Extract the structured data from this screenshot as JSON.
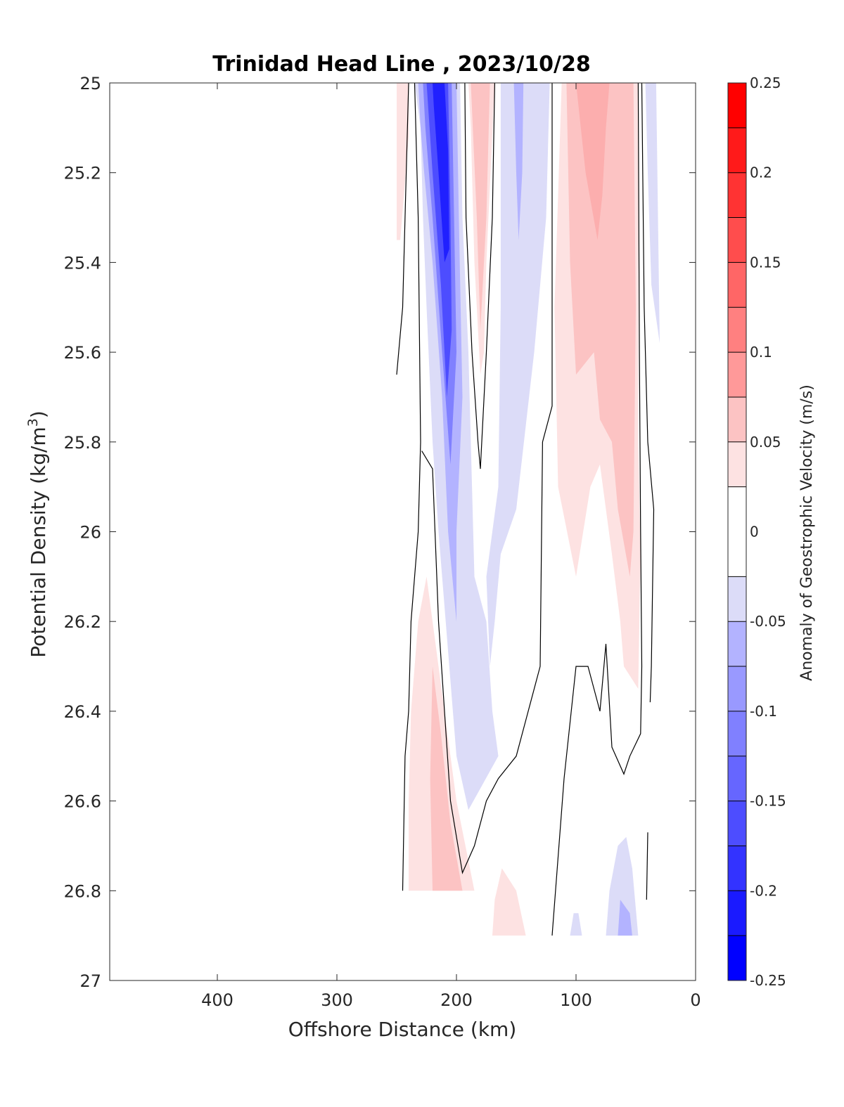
{
  "chart_data": {
    "type": "heatmap",
    "subtype": "filled-contour",
    "title": "Trinidad Head Line , 2023/10/28",
    "xlabel": "Offshore Distance (km)",
    "ylabel": "Potential Density (kg/m",
    "ylabel_sup": "3",
    "ylabel_close": ")",
    "xlim": [
      490,
      0
    ],
    "x_reversed": true,
    "ylim": [
      25,
      27
    ],
    "y_reversed": true,
    "xticks": [
      400,
      300,
      200,
      100,
      0
    ],
    "yticks": [
      25,
      25.2,
      25.4,
      25.6,
      25.8,
      26,
      26.2,
      26.4,
      26.6,
      26.8,
      27
    ],
    "ytick_labels": [
      "25",
      "25.2",
      "25.4",
      "25.6",
      "25.8",
      "26",
      "26.2",
      "26.4",
      "26.6",
      "26.8",
      "27"
    ],
    "colorbar": {
      "label": "Anomaly of Geostrophic Velocity (m/s)",
      "range": [
        -0.25,
        0.25
      ],
      "ticks": [
        0.25,
        0.2,
        0.15,
        0.1,
        0.05,
        0,
        -0.05,
        -0.1,
        -0.15,
        -0.2,
        -0.25
      ],
      "tick_labels": [
        "0.25",
        "0.2",
        "0.15",
        "0.1",
        "0.05",
        "0",
        "-0.05",
        "-0.1",
        "-0.15",
        "-0.2",
        "-0.25"
      ],
      "levels": [
        -0.25,
        -0.225,
        -0.2,
        -0.175,
        -0.15,
        -0.125,
        -0.1,
        -0.075,
        -0.05,
        -0.025,
        0.025,
        0.05,
        0.075,
        0.1,
        0.125,
        0.15,
        0.175,
        0.2,
        0.225,
        0.25
      ],
      "bands": [
        {
          "min": -0.25,
          "max": -0.225,
          "color": "#0000ff"
        },
        {
          "min": -0.225,
          "max": -0.2,
          "color": "#1a1aff"
        },
        {
          "min": -0.2,
          "max": -0.175,
          "color": "#3333ff"
        },
        {
          "min": -0.175,
          "max": -0.15,
          "color": "#4d4dff"
        },
        {
          "min": -0.15,
          "max": -0.125,
          "color": "#6666ff"
        },
        {
          "min": -0.125,
          "max": -0.1,
          "color": "#8080ff"
        },
        {
          "min": -0.1,
          "max": -0.075,
          "color": "#9999ff"
        },
        {
          "min": -0.075,
          "max": -0.05,
          "color": "#b3b3ff"
        },
        {
          "min": -0.05,
          "max": -0.025,
          "color": "#dcdcf8"
        },
        {
          "min": -0.025,
          "max": 0.025,
          "color": "#ffffff"
        },
        {
          "min": 0.025,
          "max": 0.05,
          "color": "#fde2e2"
        },
        {
          "min": 0.05,
          "max": 0.075,
          "color": "#fcc3c3"
        },
        {
          "min": 0.075,
          "max": 0.1,
          "color": "#ff9999"
        },
        {
          "min": 0.1,
          "max": 0.125,
          "color": "#ff8080"
        },
        {
          "min": 0.125,
          "max": 0.15,
          "color": "#ff6666"
        },
        {
          "min": 0.15,
          "max": 0.175,
          "color": "#ff4d4d"
        },
        {
          "min": 0.175,
          "max": 0.2,
          "color": "#ff3333"
        },
        {
          "min": 0.2,
          "max": 0.225,
          "color": "#ff1a1a"
        },
        {
          "min": 0.225,
          "max": 0.25,
          "color": "#ff0000"
        }
      ]
    },
    "regions": [
      {
        "name": "red-strip-far-offshore",
        "level": 0.04,
        "color": "#fde2e2",
        "points": [
          [
            250,
            25
          ],
          [
            240,
            25
          ],
          [
            240,
            25.12
          ],
          [
            247,
            25.35
          ],
          [
            250,
            25.35
          ]
        ]
      },
      {
        "name": "blue-core-light",
        "level": -0.04,
        "color": "#dcdcf8",
        "points": [
          [
            235,
            25
          ],
          [
            197,
            25
          ],
          [
            195,
            25.3
          ],
          [
            190,
            25.6
          ],
          [
            185,
            26.1
          ],
          [
            175,
            26.2
          ],
          [
            170,
            26.4
          ],
          [
            165,
            26.5
          ],
          [
            190,
            26.62
          ],
          [
            200,
            26.5
          ],
          [
            215,
            26.0
          ],
          [
            220,
            25.8
          ],
          [
            225,
            25.5
          ],
          [
            228,
            25.3
          ],
          [
            230,
            25.1
          ]
        ]
      },
      {
        "name": "blue-core-mid",
        "level": -0.08,
        "color": "#b3b3ff",
        "points": [
          [
            232,
            25
          ],
          [
            200,
            25
          ],
          [
            198,
            25.3
          ],
          [
            195,
            25.7
          ],
          [
            200,
            26.0
          ],
          [
            200,
            26.2
          ],
          [
            207,
            26.0
          ],
          [
            212,
            25.7
          ],
          [
            220,
            25.4
          ],
          [
            227,
            25.2
          ],
          [
            230,
            25.1
          ]
        ]
      },
      {
        "name": "blue-core-strong",
        "level": -0.12,
        "color": "#8080ff",
        "points": [
          [
            228,
            25
          ],
          [
            204,
            25
          ],
          [
            202,
            25.3
          ],
          [
            200,
            25.6
          ],
          [
            205,
            25.85
          ],
          [
            212,
            25.6
          ],
          [
            220,
            25.3
          ],
          [
            226,
            25.1
          ]
        ]
      },
      {
        "name": "blue-core-stronger",
        "level": -0.17,
        "color": "#4d4dff",
        "points": [
          [
            225,
            25
          ],
          [
            207,
            25
          ],
          [
            205,
            25.3
          ],
          [
            204,
            25.55
          ],
          [
            208,
            25.7
          ],
          [
            213,
            25.45
          ],
          [
            220,
            25.2
          ],
          [
            223,
            25.08
          ]
        ]
      },
      {
        "name": "blue-core-max",
        "level": -0.22,
        "color": "#2020ff",
        "points": [
          [
            220,
            25
          ],
          [
            210,
            25
          ],
          [
            207,
            25.15
          ],
          [
            206,
            25.37
          ],
          [
            210,
            25.4
          ],
          [
            215,
            25.2
          ],
          [
            219,
            25.05
          ]
        ]
      },
      {
        "name": "red-wedge-upper",
        "level": 0.04,
        "color": "#fde2e2",
        "points": [
          [
            190,
            25
          ],
          [
            168,
            25
          ],
          [
            175,
            25.4
          ],
          [
            177,
            25.6
          ],
          [
            180,
            25.65
          ],
          [
            185,
            25.4
          ],
          [
            188,
            25.1
          ]
        ]
      },
      {
        "name": "red-wedge-upper-mid",
        "level": 0.06,
        "color": "#fcc3c3",
        "points": [
          [
            188,
            25
          ],
          [
            172,
            25
          ],
          [
            175,
            25.3
          ],
          [
            180,
            25.55
          ],
          [
            183,
            25.3
          ]
        ]
      },
      {
        "name": "blue-wedge",
        "level": -0.04,
        "color": "#dcdcf8",
        "points": [
          [
            163,
            25
          ],
          [
            122,
            25
          ],
          [
            125,
            25.3
          ],
          [
            135,
            25.6
          ],
          [
            150,
            25.95
          ],
          [
            163,
            26.05
          ],
          [
            168,
            26.2
          ],
          [
            172,
            26.3
          ],
          [
            175,
            26.1
          ],
          [
            165,
            25.9
          ],
          [
            163,
            25.5
          ]
        ]
      },
      {
        "name": "blue-wedge-mid",
        "level": -0.07,
        "color": "#b3b3ff",
        "points": [
          [
            152,
            25
          ],
          [
            144,
            25
          ],
          [
            145,
            25.2
          ],
          [
            148,
            25.35
          ],
          [
            150,
            25.2
          ]
        ]
      },
      {
        "name": "red-nearshore",
        "level": 0.04,
        "color": "#fde2e2",
        "points": [
          [
            112,
            25
          ],
          [
            48,
            25
          ],
          [
            48,
            25.8
          ],
          [
            46,
            26.05
          ],
          [
            48,
            26.35
          ],
          [
            60,
            26.3
          ],
          [
            63,
            26.2
          ],
          [
            70,
            26.05
          ],
          [
            80,
            25.85
          ],
          [
            88,
            25.9
          ],
          [
            100,
            26.1
          ],
          [
            115,
            25.9
          ],
          [
            118,
            25.5
          ]
        ]
      },
      {
        "name": "red-nearshore-mid",
        "level": 0.06,
        "color": "#fcc3c3",
        "points": [
          [
            108,
            25
          ],
          [
            52,
            25
          ],
          [
            50,
            25.5
          ],
          [
            52,
            26.0
          ],
          [
            55,
            26.1
          ],
          [
            65,
            25.95
          ],
          [
            70,
            25.8
          ],
          [
            80,
            25.75
          ],
          [
            85,
            25.6
          ],
          [
            100,
            25.65
          ],
          [
            105,
            25.4
          ]
        ]
      },
      {
        "name": "red-nearshore-core",
        "level": 0.09,
        "color": "#fcaeae",
        "points": [
          [
            100,
            25
          ],
          [
            72,
            25
          ],
          [
            75,
            25.1
          ],
          [
            78,
            25.25
          ],
          [
            82,
            25.35
          ],
          [
            92,
            25.2
          ]
        ]
      },
      {
        "name": "blue-coastal-strip",
        "level": -0.04,
        "color": "#dcdcf8",
        "points": [
          [
            42,
            25
          ],
          [
            33,
            25
          ],
          [
            30,
            25.58
          ],
          [
            37,
            25.45
          ],
          [
            40,
            25.2
          ]
        ]
      },
      {
        "name": "red-deep-offshore",
        "level": 0.04,
        "color": "#fde2e2",
        "points": [
          [
            232,
            26.2
          ],
          [
            225,
            26.1
          ],
          [
            215,
            26.3
          ],
          [
            200,
            26.6
          ],
          [
            185,
            26.8
          ],
          [
            240,
            26.8
          ],
          [
            240,
            26.6
          ],
          [
            238,
            26.4
          ]
        ]
      },
      {
        "name": "red-deep-offshore-mid",
        "level": 0.07,
        "color": "#fcc3c3",
        "points": [
          [
            220,
            26.3
          ],
          [
            213,
            26.45
          ],
          [
            205,
            26.65
          ],
          [
            195,
            26.8
          ],
          [
            220,
            26.8
          ],
          [
            222,
            26.55
          ]
        ]
      },
      {
        "name": "red-deep-mid",
        "level": 0.04,
        "color": "#fde2e2",
        "points": [
          [
            162,
            26.75
          ],
          [
            150,
            26.8
          ],
          [
            142,
            26.9
          ],
          [
            170,
            26.9
          ],
          [
            168,
            26.82
          ]
        ]
      },
      {
        "name": "blue-deep-nearshore",
        "level": -0.04,
        "color": "#dcdcf8",
        "points": [
          [
            65,
            26.7
          ],
          [
            58,
            26.68
          ],
          [
            53,
            26.75
          ],
          [
            48,
            26.9
          ],
          [
            75,
            26.9
          ],
          [
            72,
            26.8
          ]
        ]
      },
      {
        "name": "blue-deep-nearshore-mid",
        "level": -0.07,
        "color": "#b3b3ff",
        "points": [
          [
            63,
            26.82
          ],
          [
            55,
            26.85
          ],
          [
            53,
            26.9
          ],
          [
            65,
            26.9
          ]
        ]
      },
      {
        "name": "blue-deep-small",
        "level": -0.04,
        "color": "#dcdcf8",
        "points": [
          [
            98,
            26.85
          ],
          [
            95,
            26.9
          ],
          [
            105,
            26.9
          ],
          [
            102,
            26.85
          ]
        ]
      }
    ],
    "zero_contours": [
      {
        "name": "zero-contour-offshore-upper",
        "points": [
          [
            240,
            25
          ],
          [
            243,
            25.3
          ],
          [
            245,
            25.5
          ],
          [
            250,
            25.65
          ]
        ]
      },
      {
        "name": "zero-contour-core-west",
        "points": [
          [
            235,
            25
          ],
          [
            232,
            25.3
          ],
          [
            230,
            25.8
          ],
          [
            232,
            26.0
          ],
          [
            238,
            26.2
          ],
          [
            240,
            26.4
          ],
          [
            243,
            26.5
          ],
          [
            245,
            26.8
          ]
        ]
      },
      {
        "name": "zero-contour-core-east",
        "points": [
          [
            193,
            25
          ],
          [
            192,
            25.3
          ],
          [
            187,
            25.6
          ],
          [
            182,
            25.8
          ],
          [
            180,
            25.86
          ],
          [
            175,
            25.6
          ],
          [
            170,
            25.3
          ],
          [
            168,
            25
          ]
        ]
      },
      {
        "name": "zero-contour-mid-loop",
        "points": [
          [
            229,
            25.82
          ],
          [
            220,
            25.86
          ],
          [
            215,
            26.2
          ],
          [
            210,
            26.4
          ],
          [
            205,
            26.6
          ],
          [
            195,
            26.76
          ],
          [
            185,
            26.7
          ],
          [
            175,
            26.6
          ],
          [
            165,
            26.55
          ],
          [
            150,
            26.5
          ],
          [
            130,
            26.3
          ],
          [
            128,
            25.8
          ],
          [
            120,
            25.72
          ],
          [
            120,
            25
          ]
        ]
      },
      {
        "name": "zero-contour-nearshore",
        "points": [
          [
            45,
            25
          ],
          [
            43,
            25.5
          ],
          [
            40,
            25.8
          ],
          [
            35,
            25.95
          ],
          [
            37,
            26.3
          ],
          [
            38,
            26.38
          ]
        ]
      },
      {
        "name": "zero-contour-nearshore-bend",
        "points": [
          [
            48,
            25
          ],
          [
            47,
            25.6
          ],
          [
            46,
            26.0
          ],
          [
            45,
            26.3
          ],
          [
            46,
            26.45
          ],
          [
            55,
            26.5
          ],
          [
            60,
            26.54
          ],
          [
            70,
            26.48
          ],
          [
            75,
            26.25
          ],
          [
            80,
            26.4
          ],
          [
            90,
            26.3
          ],
          [
            100,
            26.3
          ],
          [
            110,
            26.55
          ],
          [
            120,
            26.9
          ]
        ]
      },
      {
        "name": "zero-contour-coastal-deep",
        "points": [
          [
            40,
            26.67
          ],
          [
            41,
            26.82
          ]
        ]
      }
    ]
  }
}
